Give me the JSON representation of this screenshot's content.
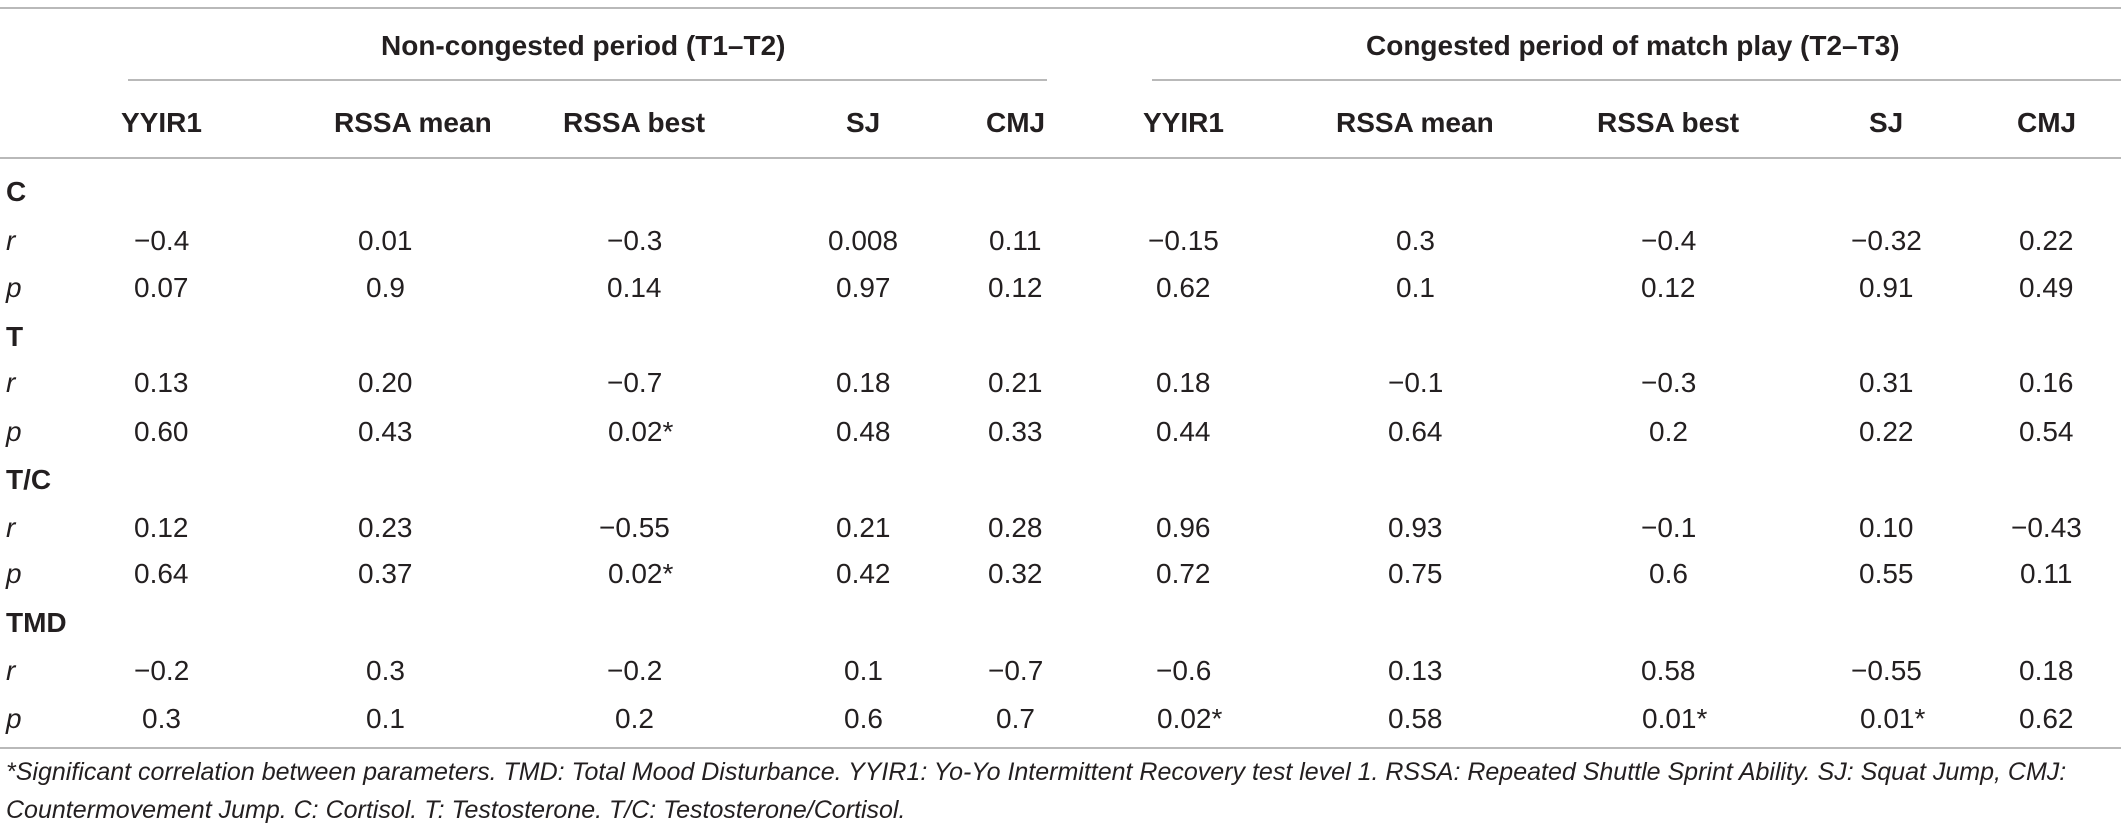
{
  "table": {
    "groups": [
      "Non-congested period (T1–T2)",
      "Congested period of match play (T2–T3)"
    ],
    "columns": [
      "YYIR1",
      "RSSA mean",
      "RSSA best",
      "SJ",
      "CMJ",
      "YYIR1",
      "RSSA mean",
      "RSSA best",
      "SJ",
      "CMJ"
    ],
    "sections": [
      {
        "label": "C",
        "rows": [
          {
            "stat": "r",
            "values": [
              "−0.4",
              "0.01",
              "−0.3",
              "0.008",
              "0.11",
              "−0.15",
              "0.3",
              "−0.4",
              "−0.32",
              "0.22"
            ]
          },
          {
            "stat": "p",
            "values": [
              "0.07",
              "0.9",
              "0.14",
              "0.97",
              "0.12",
              "0.62",
              "0.1",
              "0.12",
              "0.91",
              "0.49"
            ]
          }
        ]
      },
      {
        "label": "T",
        "rows": [
          {
            "stat": "r",
            "values": [
              "0.13",
              "0.20",
              "−0.7",
              "0.18",
              "0.21",
              "0.18",
              "−0.1",
              "−0.3",
              "0.31",
              "0.16"
            ]
          },
          {
            "stat": "p",
            "values": [
              "0.60",
              "0.43",
              "0.02*",
              "0.48",
              "0.33",
              "0.44",
              "0.64",
              "0.2",
              "0.22",
              "0.54"
            ]
          }
        ]
      },
      {
        "label": "T/C",
        "rows": [
          {
            "stat": "r",
            "values": [
              "0.12",
              "0.23",
              "−0.55",
              "0.21",
              "0.28",
              "0.96",
              "0.93",
              "−0.1",
              "0.10",
              "−0.43"
            ]
          },
          {
            "stat": "p",
            "values": [
              "0.64",
              "0.37",
              "0.02*",
              "0.42",
              "0.32",
              "0.72",
              "0.75",
              "0.6",
              "0.55",
              "0.11"
            ]
          }
        ]
      },
      {
        "label": "TMD",
        "rows": [
          {
            "stat": "r",
            "values": [
              "−0.2",
              "0.3",
              "−0.2",
              "0.1",
              "−0.7",
              "−0.6",
              "0.13",
              "0.58",
              "−0.55",
              "0.18"
            ]
          },
          {
            "stat": "p",
            "values": [
              "0.3",
              "0.1",
              "0.2",
              "0.6",
              "0.7",
              "0.02*",
              "0.58",
              "0.01*",
              "0.01*",
              "0.62"
            ]
          }
        ]
      }
    ]
  },
  "footnote": "*Significant correlation between parameters. TMD: Total Mood Disturbance. YYIR1: Yo-Yo Intermittent Recovery test level 1. RSSA: Repeated Shuttle Sprint Ability. SJ: Squat Jump, CMJ: Countermovement Jump. C: Cortisol. T: Testosterone. T/C: Testosterone/Cortisol."
}
